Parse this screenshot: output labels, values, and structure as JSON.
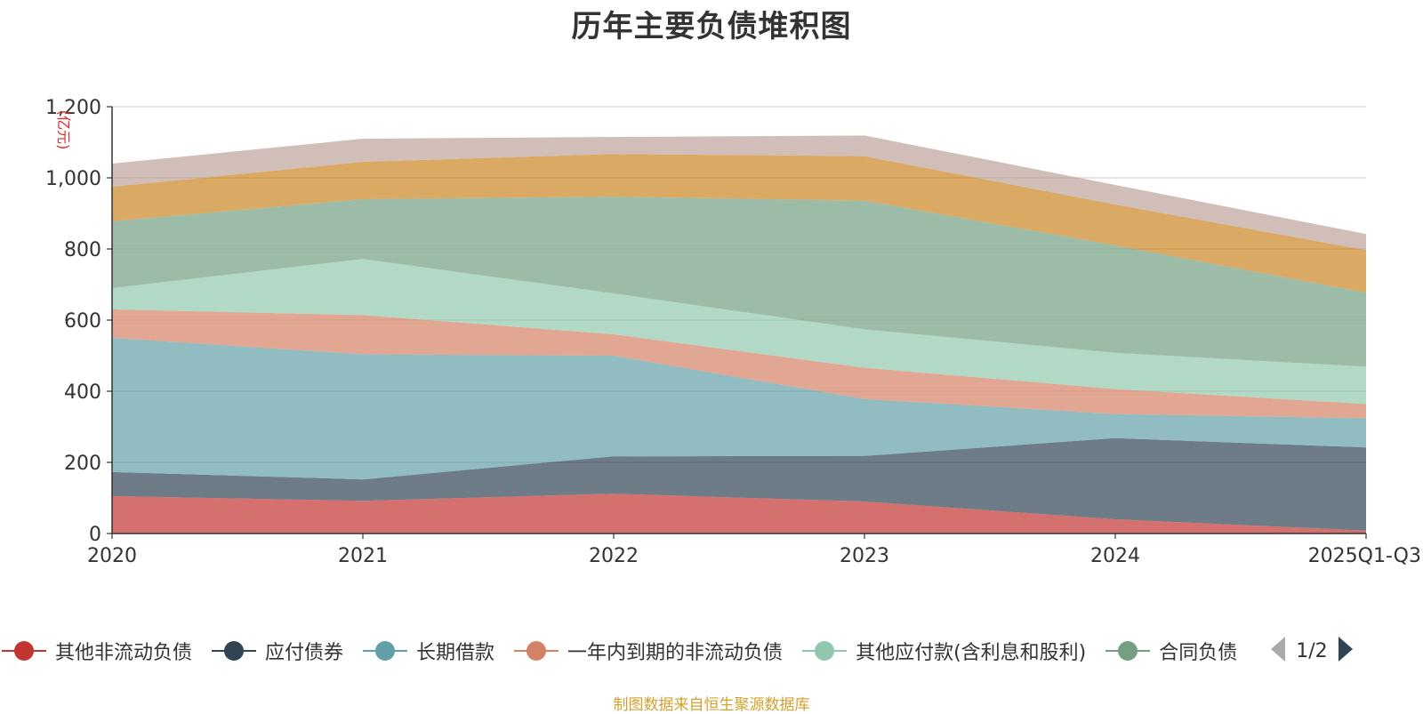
{
  "title": "历年主要负债堆积图",
  "source": "制图数据来自恒生聚源数据库",
  "pager_text": "1/2",
  "chart_data": {
    "type": "area",
    "stacked": true,
    "title": "历年主要负债堆积图",
    "ylabel": "(亿元)",
    "xlabel": "",
    "ylim": [
      0,
      1200
    ],
    "yticks": [
      0,
      200,
      400,
      600,
      800,
      1000,
      1200
    ],
    "ytick_labels": [
      "0",
      "200",
      "400",
      "600",
      "800",
      "1,000",
      "1,200"
    ],
    "categories": [
      "2020",
      "2021",
      "2022",
      "2023",
      "2024",
      "2025Q1-Q3"
    ],
    "grid": true,
    "legend_position": "bottom",
    "series": [
      {
        "name": "其他非流动负债",
        "color": "#c23531",
        "values": [
          105,
          92,
          112,
          90,
          40,
          8
        ]
      },
      {
        "name": "应付债券",
        "color": "#2f4554",
        "values": [
          68,
          60,
          105,
          128,
          228,
          234
        ]
      },
      {
        "name": "长期借款",
        "color": "#61a0a8",
        "values": [
          377,
          352,
          283,
          160,
          68,
          82
        ]
      },
      {
        "name": "一年内到期的非流动负债",
        "color": "#d48265",
        "values": [
          80,
          110,
          60,
          88,
          70,
          40
        ]
      },
      {
        "name": "其他应付款(含利息和股利)",
        "color": "#91c7ae",
        "values": [
          60,
          158,
          115,
          108,
          102,
          105
        ]
      },
      {
        "name": "合同负债",
        "color": "#749f83",
        "values": [
          188,
          168,
          272,
          362,
          302,
          208
        ]
      },
      {
        "name": "series-7",
        "color": "#ca8622",
        "values": [
          97,
          105,
          120,
          125,
          115,
          120
        ],
        "in_legend": false
      },
      {
        "name": "series-8",
        "color": "#bda29a",
        "values": [
          65,
          65,
          48,
          58,
          55,
          45
        ],
        "in_legend": false
      }
    ]
  }
}
